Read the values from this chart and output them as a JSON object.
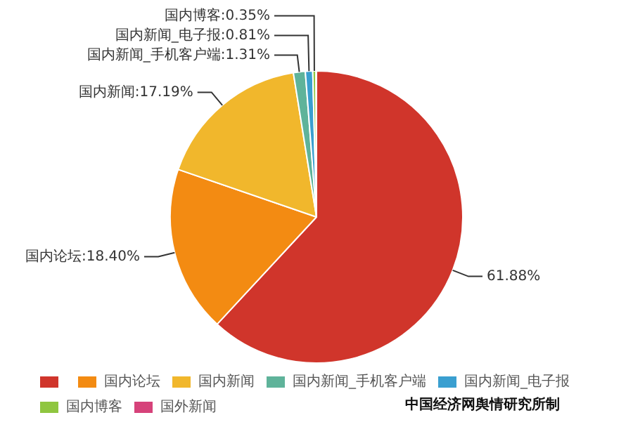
{
  "chart_data": {
    "type": "pie",
    "categories": [
      null,
      "国内论坛",
      "国内新闻",
      "国内新闻_手机客户端",
      "国内新闻_电子报",
      "国内博客",
      "国外新闻"
    ],
    "values": [
      61.88,
      18.4,
      17.19,
      1.31,
      0.81,
      0.35,
      0.06
    ],
    "colors": [
      "#d0352b",
      "#f38b12",
      "#f1b72c",
      "#5fb39a",
      "#3a9fd0",
      "#8fc640",
      "#d6427a"
    ],
    "value_labels": [
      "61.88%",
      "国内论坛:18.40%",
      "国内新闻:17.19%",
      "国内新闻_手机客户端:1.31%",
      "国内新闻_电子报:0.81%",
      "国内博客:0.35%",
      null
    ],
    "legend": "bottom",
    "annotations": [
      "中国经济网舆情研究所制"
    ]
  }
}
